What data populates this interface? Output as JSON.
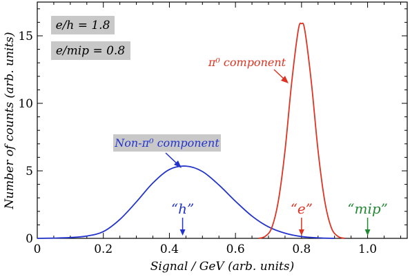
{
  "chart_data": {
    "type": "line",
    "xlabel": "Signal / GeV (arb. units)",
    "ylabel": "Number of counts (arb. units)",
    "xlim": [
      0,
      1.12
    ],
    "ylim": [
      0,
      17.5
    ],
    "x_ticks": [
      0,
      0.2,
      0.4,
      0.6,
      0.8,
      1.0
    ],
    "x_tick_labels": [
      "0",
      "0.2",
      "0.4",
      "0.6",
      "0.8",
      "1.0"
    ],
    "y_ticks": [
      0,
      5,
      10,
      15
    ],
    "y_tick_labels": [
      "0",
      "5",
      "10",
      "15"
    ],
    "grid": false,
    "series": [
      {
        "name": "Non-π⁰ component",
        "color": "#2233cc",
        "x": [
          0,
          0.05,
          0.1,
          0.15,
          0.2,
          0.25,
          0.3,
          0.35,
          0.4,
          0.45,
          0.5,
          0.55,
          0.6,
          0.65,
          0.7,
          0.75,
          0.8,
          0.85,
          0.9
        ],
        "y": [
          0,
          0.02,
          0.06,
          0.17,
          0.5,
          1.4,
          2.7,
          4.1,
          5.1,
          5.35,
          4.95,
          3.95,
          2.75,
          1.65,
          0.85,
          0.38,
          0.13,
          0.04,
          0
        ]
      },
      {
        "name": "π⁰ component",
        "color": "#dd3322",
        "x": [
          0.67,
          0.69,
          0.71,
          0.73,
          0.75,
          0.77,
          0.79,
          0.8,
          0.81,
          0.83,
          0.85,
          0.87,
          0.89,
          0.91,
          0.93
        ],
        "y": [
          0,
          0.15,
          0.8,
          2.8,
          6.5,
          11.5,
          15.4,
          15.9,
          15.4,
          11.5,
          6.5,
          2.8,
          0.8,
          0.15,
          0
        ]
      }
    ],
    "annotations": {
      "eh_box": "e/h = 1.8",
      "emip_box": "e/mip = 0.8",
      "nonpi_label": "Non-π⁰ component",
      "pi_label": "π⁰ component",
      "h_marker": "“h”",
      "e_marker": "“e”",
      "mip_marker": "“mip”"
    },
    "marker_x": {
      "h": 0.44,
      "e": 0.8,
      "mip": 1.0
    },
    "colors": {
      "blue": "#2233cc",
      "red": "#dd3322",
      "green": "#228833",
      "label_box": "#c8c8c8"
    }
  }
}
